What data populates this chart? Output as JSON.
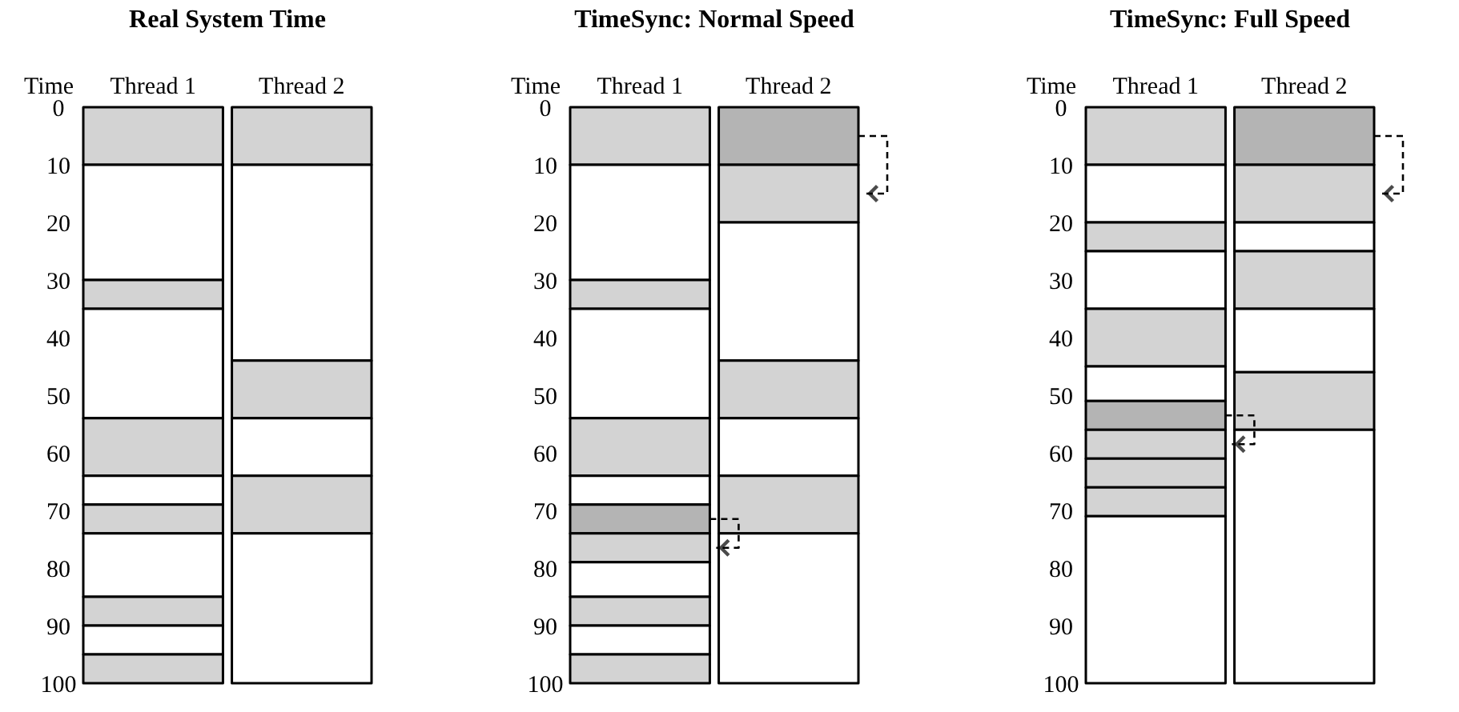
{
  "chart_data": [
    {
      "type": "bar",
      "title": "Real System Time",
      "ylabel": "Time",
      "categories": [
        "Thread 1",
        "Thread 2"
      ],
      "stacked": true,
      "ylim": [
        100,
        0
      ],
      "yticks": [
        0,
        10,
        20,
        30,
        40,
        50,
        60,
        70,
        80,
        90,
        100
      ],
      "grid": false,
      "series": [
        {
          "values": [
            10,
            10
          ],
          "colors": [
            "#d3d3d3",
            "#d3d3d3"
          ]
        },
        {
          "values": [
            20,
            34
          ],
          "colors": [
            "#ffffff",
            "#ffffff"
          ]
        },
        {
          "values": [
            5,
            10
          ],
          "colors": [
            "#d3d3d3",
            "#d3d3d3"
          ]
        },
        {
          "values": [
            19,
            10
          ],
          "colors": [
            "#ffffff",
            "#ffffff"
          ]
        },
        {
          "values": [
            10,
            10
          ],
          "colors": [
            "#d3d3d3",
            "#d3d3d3"
          ]
        },
        {
          "values": [
            5,
            26
          ],
          "colors": [
            "#ffffff",
            "#ffffff"
          ]
        },
        {
          "values": [
            5,
            null
          ],
          "colors": [
            "#d3d3d3",
            null
          ]
        },
        {
          "values": [
            11,
            null
          ],
          "colors": [
            "#ffffff",
            null
          ]
        },
        {
          "values": [
            5,
            null
          ],
          "colors": [
            "#d3d3d3",
            null
          ]
        },
        {
          "values": [
            5,
            null
          ],
          "colors": [
            "#ffffff",
            null
          ]
        },
        {
          "values": [
            5,
            null
          ],
          "colors": [
            "#d3d3d3",
            null
          ]
        }
      ]
    },
    {
      "type": "bar",
      "title": "TimeSync: Normal Speed",
      "ylabel": "Time",
      "categories": [
        "Thread 1",
        "Thread 2"
      ],
      "stacked": true,
      "ylim": [
        100,
        0
      ],
      "yticks": [
        0,
        10,
        20,
        30,
        40,
        50,
        60,
        70,
        80,
        90,
        100
      ],
      "grid": false,
      "series": [
        {
          "values": [
            10,
            10
          ],
          "colors": [
            "#d3d3d3",
            "#b4b4b4"
          ]
        },
        {
          "values": [
            20,
            10
          ],
          "colors": [
            "#ffffff",
            "#d3d3d3"
          ]
        },
        {
          "values": [
            5,
            24
          ],
          "colors": [
            "#d3d3d3",
            "#ffffff"
          ]
        },
        {
          "values": [
            19,
            10
          ],
          "colors": [
            "#ffffff",
            "#d3d3d3"
          ]
        },
        {
          "values": [
            10,
            10
          ],
          "colors": [
            "#d3d3d3",
            "#ffffff"
          ]
        },
        {
          "values": [
            5,
            10
          ],
          "colors": [
            "#ffffff",
            "#d3d3d3"
          ]
        },
        {
          "values": [
            5,
            26
          ],
          "colors": [
            "#b4b4b4",
            "#ffffff"
          ]
        },
        {
          "values": [
            5,
            null
          ],
          "colors": [
            "#d3d3d3",
            null
          ]
        },
        {
          "values": [
            6,
            null
          ],
          "colors": [
            "#ffffff",
            null
          ]
        },
        {
          "values": [
            5,
            null
          ],
          "colors": [
            "#d3d3d3",
            null
          ]
        },
        {
          "values": [
            5,
            null
          ],
          "colors": [
            "#ffffff",
            null
          ]
        },
        {
          "values": [
            5,
            null
          ],
          "colors": [
            "#d3d3d3",
            null
          ]
        }
      ]
    },
    {
      "type": "bar",
      "title": "TimeSync: Full Speed",
      "ylabel": "Time",
      "categories": [
        "Thread 1",
        "Thread 2"
      ],
      "stacked": true,
      "ylim": [
        100,
        0
      ],
      "yticks": [
        0,
        10,
        20,
        30,
        40,
        50,
        60,
        70,
        80,
        90,
        100
      ],
      "grid": false,
      "series": [
        {
          "values": [
            10,
            10
          ],
          "colors": [
            "#d3d3d3",
            "#b4b4b4"
          ]
        },
        {
          "values": [
            10,
            10
          ],
          "colors": [
            "#ffffff",
            "#d3d3d3"
          ]
        },
        {
          "values": [
            5,
            5
          ],
          "colors": [
            "#d3d3d3",
            "#ffffff"
          ]
        },
        {
          "values": [
            10,
            10
          ],
          "colors": [
            "#ffffff",
            "#d3d3d3"
          ]
        },
        {
          "values": [
            10,
            11
          ],
          "colors": [
            "#d3d3d3",
            "#ffffff"
          ]
        },
        {
          "values": [
            6,
            10
          ],
          "colors": [
            "#ffffff",
            "#d3d3d3"
          ]
        },
        {
          "values": [
            5,
            44
          ],
          "colors": [
            "#b4b4b4",
            "#ffffff"
          ]
        },
        {
          "values": [
            5,
            null
          ],
          "colors": [
            "#d3d3d3",
            null
          ]
        },
        {
          "values": [
            5,
            null
          ],
          "colors": [
            "#d3d3d3",
            null
          ]
        },
        {
          "values": [
            5,
            null
          ],
          "colors": [
            "#d3d3d3",
            null
          ]
        },
        {
          "values": [
            29,
            null
          ],
          "colors": [
            "#ffffff",
            null
          ]
        }
      ]
    }
  ]
}
